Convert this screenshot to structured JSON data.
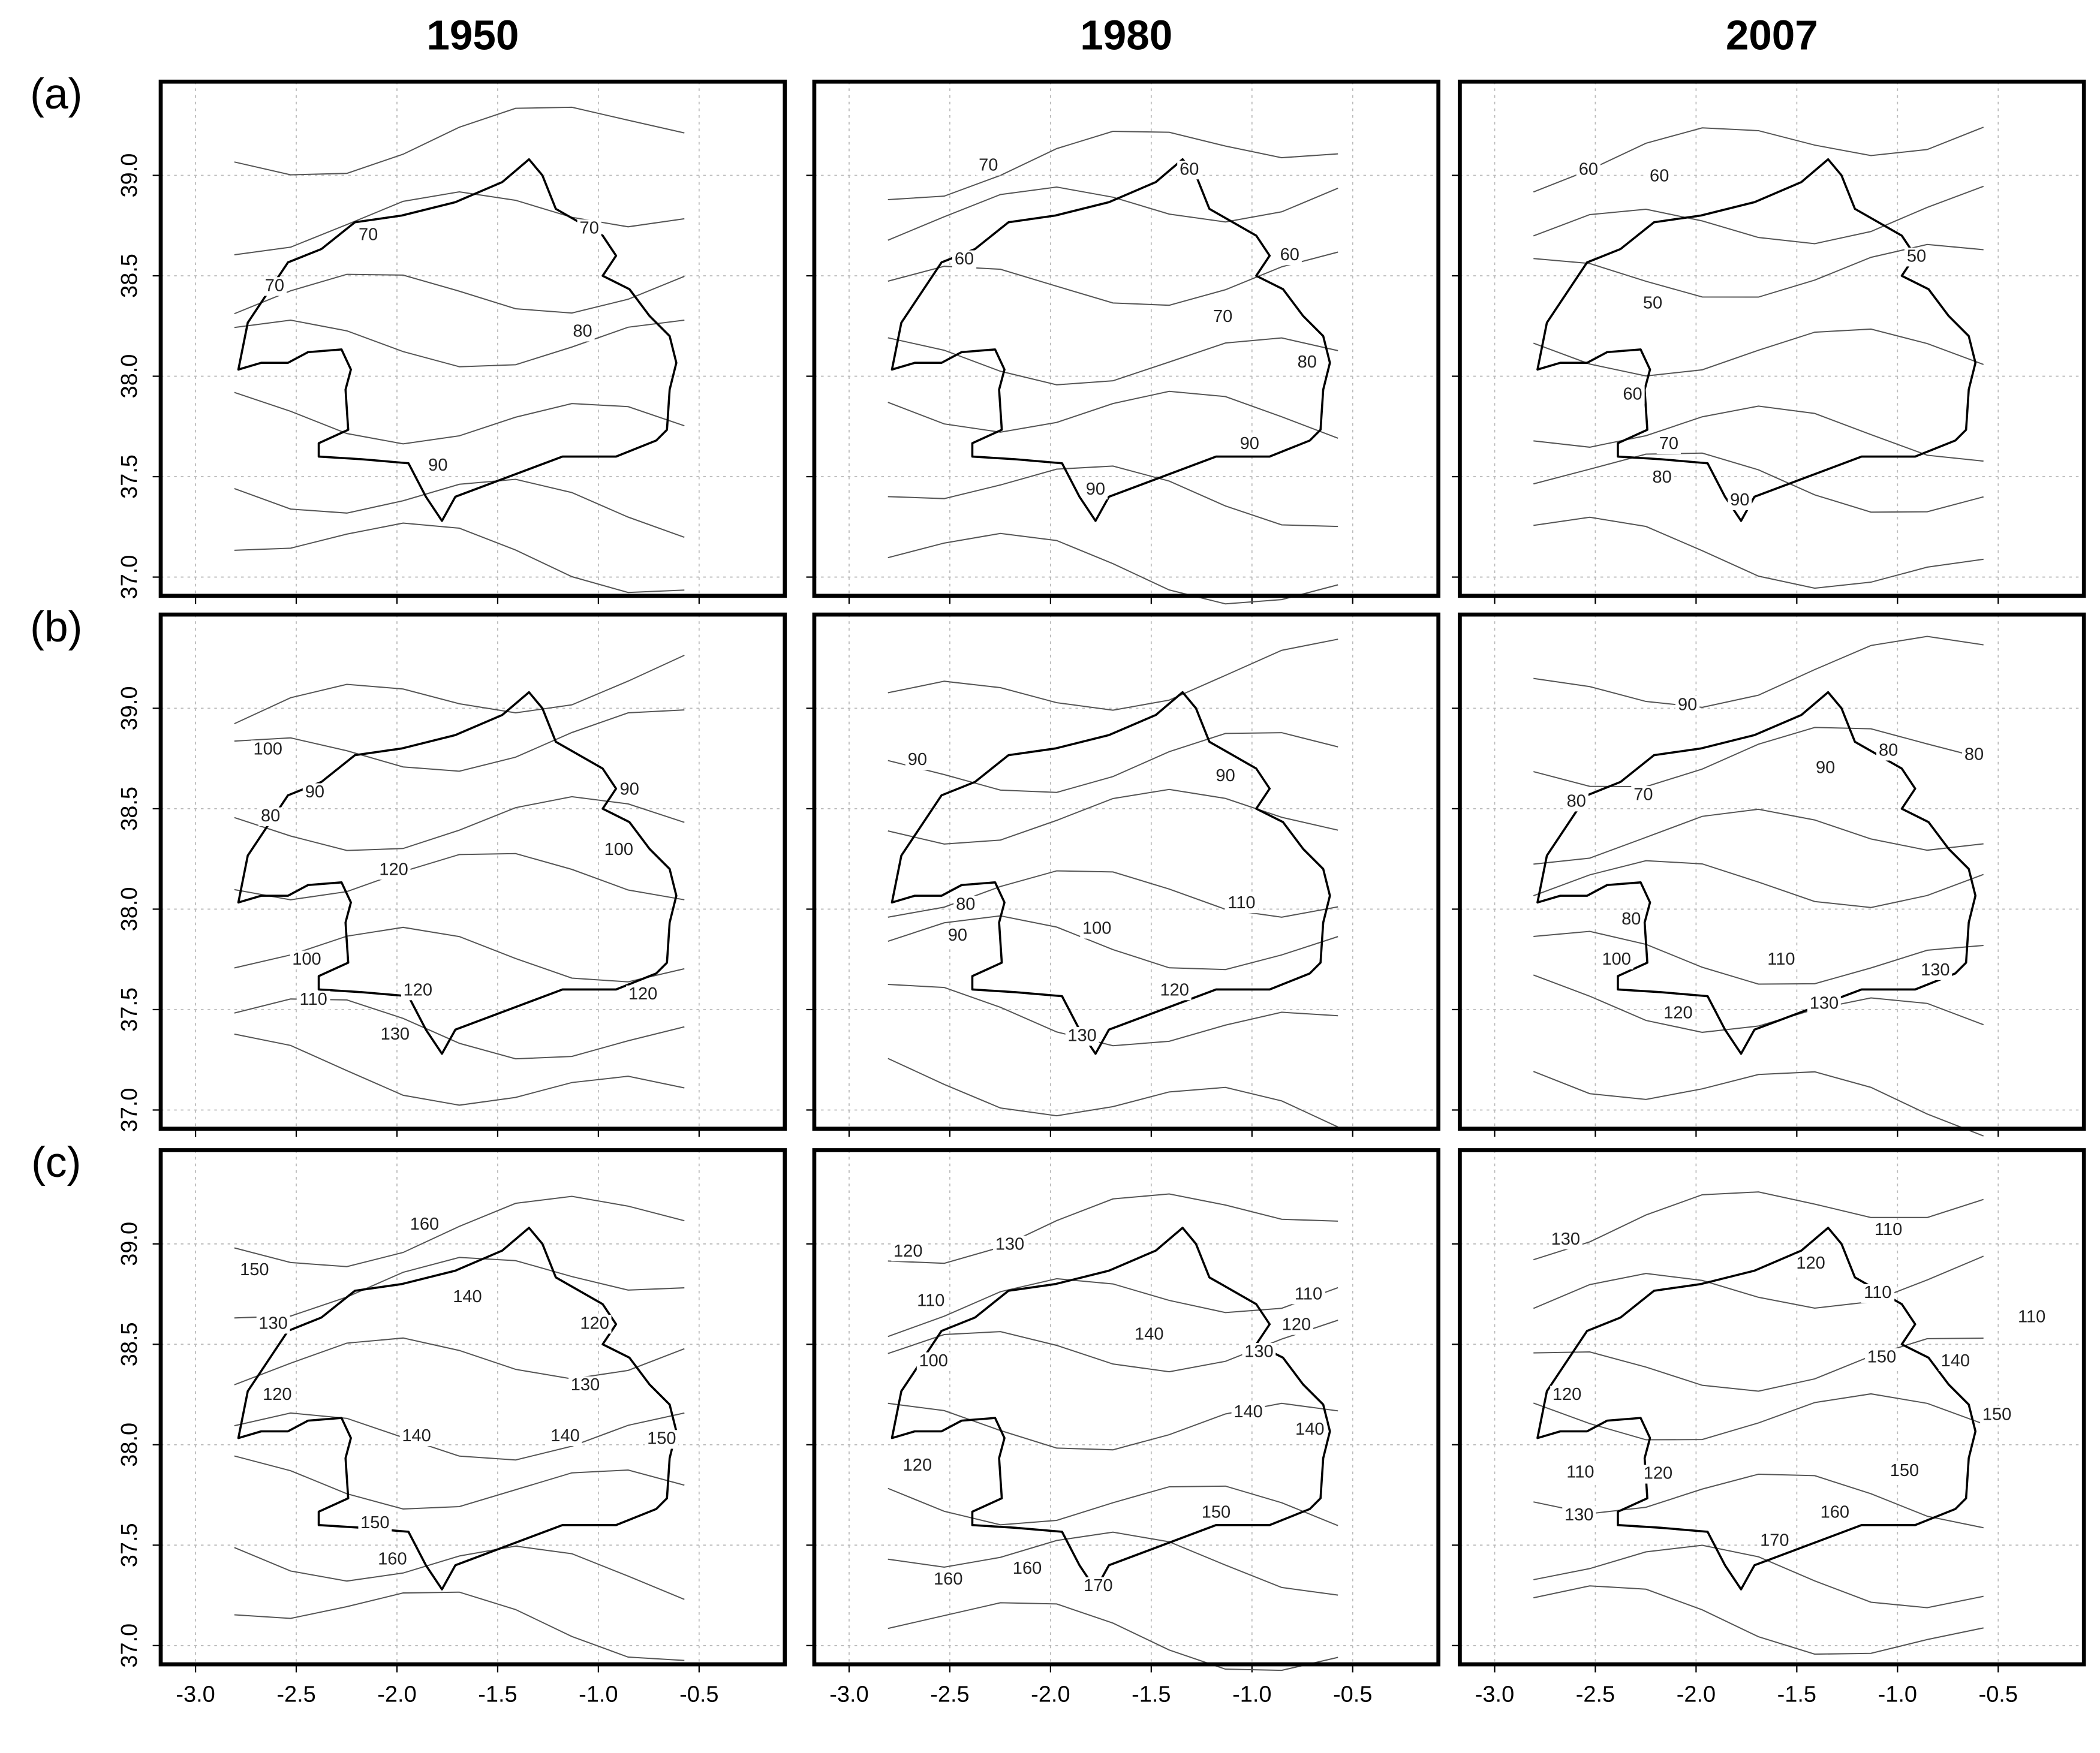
{
  "columns": [
    "1950",
    "1980",
    "2007"
  ],
  "rows": [
    "(a)",
    "(b)",
    "(c)"
  ],
  "x_ticks": [
    "-3.0",
    "-2.5",
    "-2.0",
    "-1.5",
    "-1.0",
    "-0.5"
  ],
  "y_ticks": [
    "39.0",
    "38.5",
    "38.0",
    "37.5",
    "37.0"
  ],
  "panels": [
    [
      {
        "contour_labels": [
          "70",
          "70",
          "70",
          "80",
          "90"
        ]
      },
      {
        "contour_labels": [
          "60",
          "70",
          "60",
          "60",
          "70",
          "80",
          "90",
          "90"
        ]
      },
      {
        "contour_labels": [
          "60",
          "60",
          "50",
          "50",
          "60",
          "70",
          "80",
          "90"
        ]
      }
    ],
    [
      {
        "contour_labels": [
          "100",
          "90",
          "90",
          "80",
          "120",
          "100",
          "100",
          "110",
          "120",
          "120",
          "130"
        ]
      },
      {
        "contour_labels": [
          "90",
          "90",
          "110",
          "80",
          "90",
          "100",
          "120",
          "130"
        ]
      },
      {
        "contour_labels": [
          "90",
          "80",
          "80",
          "90",
          "70",
          "80",
          "80",
          "100",
          "110",
          "130",
          "130",
          "120"
        ]
      }
    ],
    [
      {
        "contour_labels": [
          "160",
          "150",
          "140",
          "120",
          "130",
          "130",
          "120",
          "140",
          "140",
          "150",
          "150",
          "160"
        ]
      },
      {
        "contour_labels": [
          "120",
          "130",
          "110",
          "110",
          "120",
          "140",
          "130",
          "100",
          "140",
          "140",
          "120",
          "150",
          "160",
          "160",
          "170"
        ]
      },
      {
        "contour_labels": [
          "110",
          "130",
          "120",
          "110",
          "110",
          "140",
          "150",
          "120",
          "150",
          "110",
          "120",
          "150",
          "130",
          "160",
          "170"
        ]
      }
    ]
  ]
}
